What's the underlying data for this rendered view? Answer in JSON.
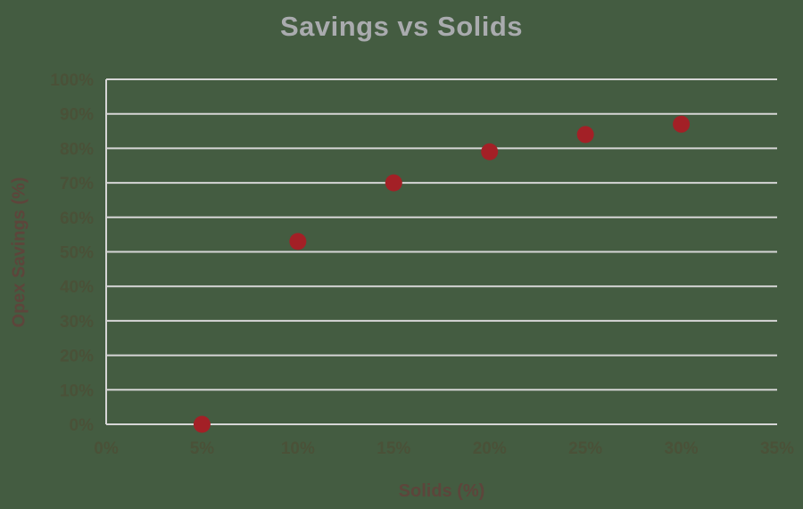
{
  "chart_data": {
    "type": "scatter",
    "title": "Savings vs Solids",
    "xlabel": "Solids (%)",
    "ylabel": "Opex Savings (%)",
    "x": [
      5,
      10,
      15,
      20,
      25,
      30
    ],
    "y": [
      0,
      53,
      70,
      79,
      84,
      87
    ],
    "xlim": [
      0,
      35
    ],
    "ylim": [
      0,
      100
    ],
    "xticks": [
      0,
      5,
      10,
      15,
      20,
      25,
      30,
      35
    ],
    "yticks": [
      0,
      10,
      20,
      30,
      40,
      50,
      60,
      70,
      80,
      90,
      100
    ],
    "xtick_labels": [
      "0%",
      "5%",
      "10%",
      "15%",
      "20%",
      "25%",
      "30%",
      "35%"
    ],
    "ytick_labels": [
      "0%",
      "10%",
      "20%",
      "30%",
      "40%",
      "50%",
      "60%",
      "70%",
      "80%",
      "90%",
      "100%"
    ],
    "grid": "horizontal",
    "legend": "none",
    "marker_radius": 9.5,
    "colors": {
      "background": "#445c41",
      "point": "#a32026",
      "grid": "#d6d6d6",
      "title": "#a9abae",
      "tick": "#4a5138",
      "axis_label": "#5d453b"
    }
  }
}
